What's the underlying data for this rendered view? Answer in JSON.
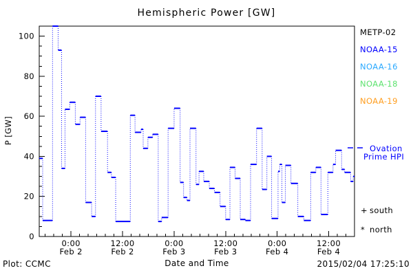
{
  "title": "Hemispheric Power [GW]",
  "legend": {
    "satellites": [
      {
        "label": "METP-02",
        "color": "#000000"
      },
      {
        "label": "NOAA-15",
        "color": "#0000ff"
      },
      {
        "label": "NOAA-16",
        "color": "#2aa9ff"
      },
      {
        "label": "NOAA-18",
        "color": "#5de26e"
      },
      {
        "label": "NOAA-19",
        "color": "#ff9d1e"
      }
    ],
    "ovation": {
      "line1": "Ovation",
      "line2": "Prime HPI",
      "color": "#0000ff"
    },
    "hemisphere_markers": [
      {
        "symbol": "+",
        "label": "south"
      },
      {
        "symbol": "*",
        "label": "north"
      }
    ]
  },
  "footer": {
    "plot_source": "Plot: CCMC",
    "timestamp": "2015/02/04 17:25:10"
  },
  "chart_data": {
    "type": "line",
    "subtype": "step-post with dotted risers",
    "title": "Hemispheric Power [GW]",
    "xlabel": "Date and Time",
    "ylabel": "P [GW]",
    "ylim": [
      0,
      105
    ],
    "xlim_hours_from_feb2": [
      -7.4,
      66
    ],
    "y_major_ticks": [
      0,
      20,
      40,
      60,
      80,
      100
    ],
    "y_minor_step": 5,
    "x_minor_step_hours": 2,
    "x_major_ticks": [
      {
        "t": 0,
        "time": "0:00",
        "date": "Feb 2"
      },
      {
        "t": 12,
        "time": "12:00",
        "date": "Feb 2"
      },
      {
        "t": 24,
        "time": "0:00",
        "date": "Feb 3"
      },
      {
        "t": 36,
        "time": "12:00",
        "date": "Feb 3"
      },
      {
        "t": 48,
        "time": "0:00",
        "date": "Feb 4"
      },
      {
        "t": 60,
        "time": "12:00",
        "date": "Feb 4"
      }
    ],
    "grid": false,
    "legend_position": "right",
    "series": [
      {
        "name": "Ovation Prime HPI",
        "color": "#0000ff",
        "points_t_hours_gw": [
          [
            -7.4,
            39
          ],
          [
            -6.6,
            8
          ],
          [
            -4.3,
            105
          ],
          [
            -3.0,
            93
          ],
          [
            -2.2,
            34
          ],
          [
            -1.4,
            63.5
          ],
          [
            -0.3,
            67
          ],
          [
            1.0,
            56
          ],
          [
            2.1,
            59.5
          ],
          [
            3.4,
            17
          ],
          [
            4.8,
            10
          ],
          [
            5.7,
            70
          ],
          [
            7.0,
            52.5
          ],
          [
            8.5,
            32
          ],
          [
            9.4,
            29.5
          ],
          [
            10.4,
            7.5
          ],
          [
            13.8,
            60.5
          ],
          [
            14.9,
            52
          ],
          [
            16.3,
            53.5
          ],
          [
            16.8,
            44
          ],
          [
            17.9,
            49.5
          ],
          [
            19.0,
            51
          ],
          [
            20.3,
            7.5
          ],
          [
            21.1,
            9.5
          ],
          [
            22.6,
            54
          ],
          [
            24.0,
            64
          ],
          [
            25.4,
            27
          ],
          [
            26.2,
            19.5
          ],
          [
            27.0,
            18
          ],
          [
            27.7,
            54
          ],
          [
            29.1,
            26
          ],
          [
            29.8,
            32.5
          ],
          [
            30.9,
            27.5
          ],
          [
            32.2,
            24
          ],
          [
            33.4,
            22
          ],
          [
            34.7,
            15
          ],
          [
            36.0,
            8.5
          ],
          [
            37.0,
            34.5
          ],
          [
            38.2,
            29
          ],
          [
            39.4,
            8.5
          ],
          [
            40.6,
            8
          ],
          [
            41.8,
            36
          ],
          [
            43.2,
            54
          ],
          [
            44.5,
            23.5
          ],
          [
            45.6,
            40
          ],
          [
            46.7,
            9
          ],
          [
            48.2,
            32.5
          ],
          [
            48.6,
            36
          ],
          [
            49.1,
            17
          ],
          [
            49.9,
            35.5
          ],
          [
            51.2,
            26.5
          ],
          [
            52.8,
            10
          ],
          [
            54.2,
            8
          ],
          [
            55.8,
            32
          ],
          [
            57.0,
            34.5
          ],
          [
            58.2,
            11
          ],
          [
            59.8,
            32
          ],
          [
            61.0,
            36
          ],
          [
            61.6,
            43
          ],
          [
            63.0,
            33.5
          ],
          [
            63.7,
            32
          ],
          [
            65.1,
            27.5
          ],
          [
            65.7,
            30
          ]
        ]
      }
    ]
  }
}
